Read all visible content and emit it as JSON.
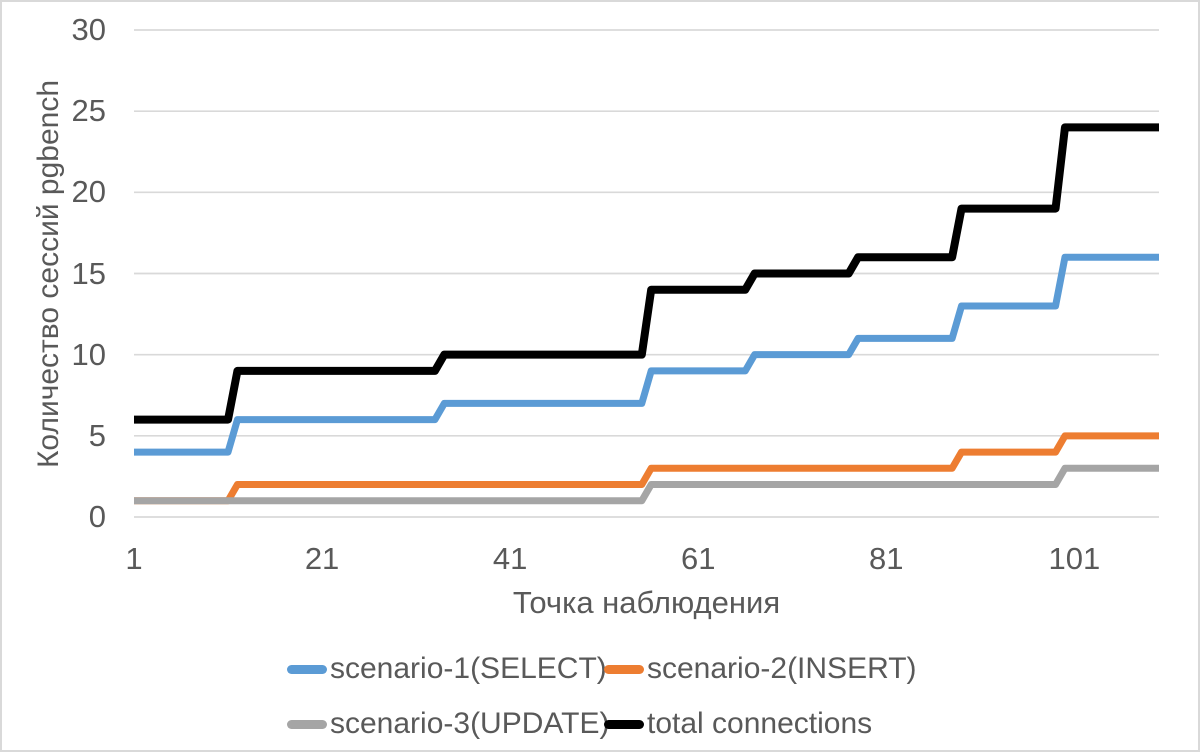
{
  "frame": {
    "background": "#FFFFFF",
    "border_color": "#D9D9D9"
  },
  "chart_data": {
    "type": "line",
    "subtype": "stepped",
    "title": "",
    "xlabel": "Точка наблюдения",
    "ylabel": "Количество сессий pgbench",
    "x_ticks": [
      1,
      21,
      41,
      61,
      81,
      101
    ],
    "y_ticks": [
      0,
      5,
      10,
      15,
      20,
      25,
      30
    ],
    "xlim": [
      1,
      110
    ],
    "ylim": [
      0,
      30
    ],
    "grid": "horizontal",
    "grid_color": "#D9D9D9",
    "text_color": "#595959",
    "legend_position": "bottom",
    "series": [
      {
        "name": "scenario-1(SELECT)",
        "slug": "scenario-1-select",
        "color": "#5B9BD5",
        "stroke_width": 7,
        "points": [
          [
            1,
            4
          ],
          [
            11,
            4
          ],
          [
            12,
            6
          ],
          [
            33,
            6
          ],
          [
            34,
            7
          ],
          [
            55,
            7
          ],
          [
            56,
            9
          ],
          [
            66,
            9
          ],
          [
            67,
            10
          ],
          [
            77,
            10
          ],
          [
            78,
            11
          ],
          [
            88,
            11
          ],
          [
            89,
            13
          ],
          [
            99,
            13
          ],
          [
            100,
            16
          ],
          [
            110,
            16
          ]
        ]
      },
      {
        "name": "scenario-2(INSERT)",
        "slug": "scenario-2-insert",
        "color": "#ED7D31",
        "stroke_width": 7,
        "points": [
          [
            1,
            1
          ],
          [
            11,
            1
          ],
          [
            12,
            2
          ],
          [
            55,
            2
          ],
          [
            56,
            3
          ],
          [
            88,
            3
          ],
          [
            89,
            4
          ],
          [
            99,
            4
          ],
          [
            100,
            5
          ],
          [
            110,
            5
          ]
        ]
      },
      {
        "name": "scenario-3(UPDATE)",
        "slug": "scenario-3-update",
        "color": "#A5A5A5",
        "stroke_width": 7,
        "points": [
          [
            1,
            1
          ],
          [
            55,
            1
          ],
          [
            56,
            2
          ],
          [
            99,
            2
          ],
          [
            100,
            3
          ],
          [
            110,
            3
          ]
        ]
      },
      {
        "name": "total connections",
        "slug": "total-connections",
        "color": "#000000",
        "stroke_width": 8,
        "points": [
          [
            1,
            6
          ],
          [
            11,
            6
          ],
          [
            12,
            9
          ],
          [
            33,
            9
          ],
          [
            34,
            10
          ],
          [
            55,
            10
          ],
          [
            56,
            14
          ],
          [
            66,
            14
          ],
          [
            67,
            15
          ],
          [
            77,
            15
          ],
          [
            78,
            16
          ],
          [
            88,
            16
          ],
          [
            89,
            19
          ],
          [
            99,
            19
          ],
          [
            100,
            24
          ],
          [
            110,
            24
          ]
        ]
      }
    ],
    "legend": [
      {
        "label": "scenario-1(SELECT)",
        "slug": "scenario-1-select",
        "color": "#5B9BD5"
      },
      {
        "label": "scenario-2(INSERT)",
        "slug": "scenario-2-insert",
        "color": "#ED7D31"
      },
      {
        "label": "scenario-3(UPDATE)",
        "slug": "scenario-3-update",
        "color": "#A5A5A5"
      },
      {
        "label": "total connections",
        "slug": "total-connections",
        "color": "#000000"
      }
    ]
  }
}
